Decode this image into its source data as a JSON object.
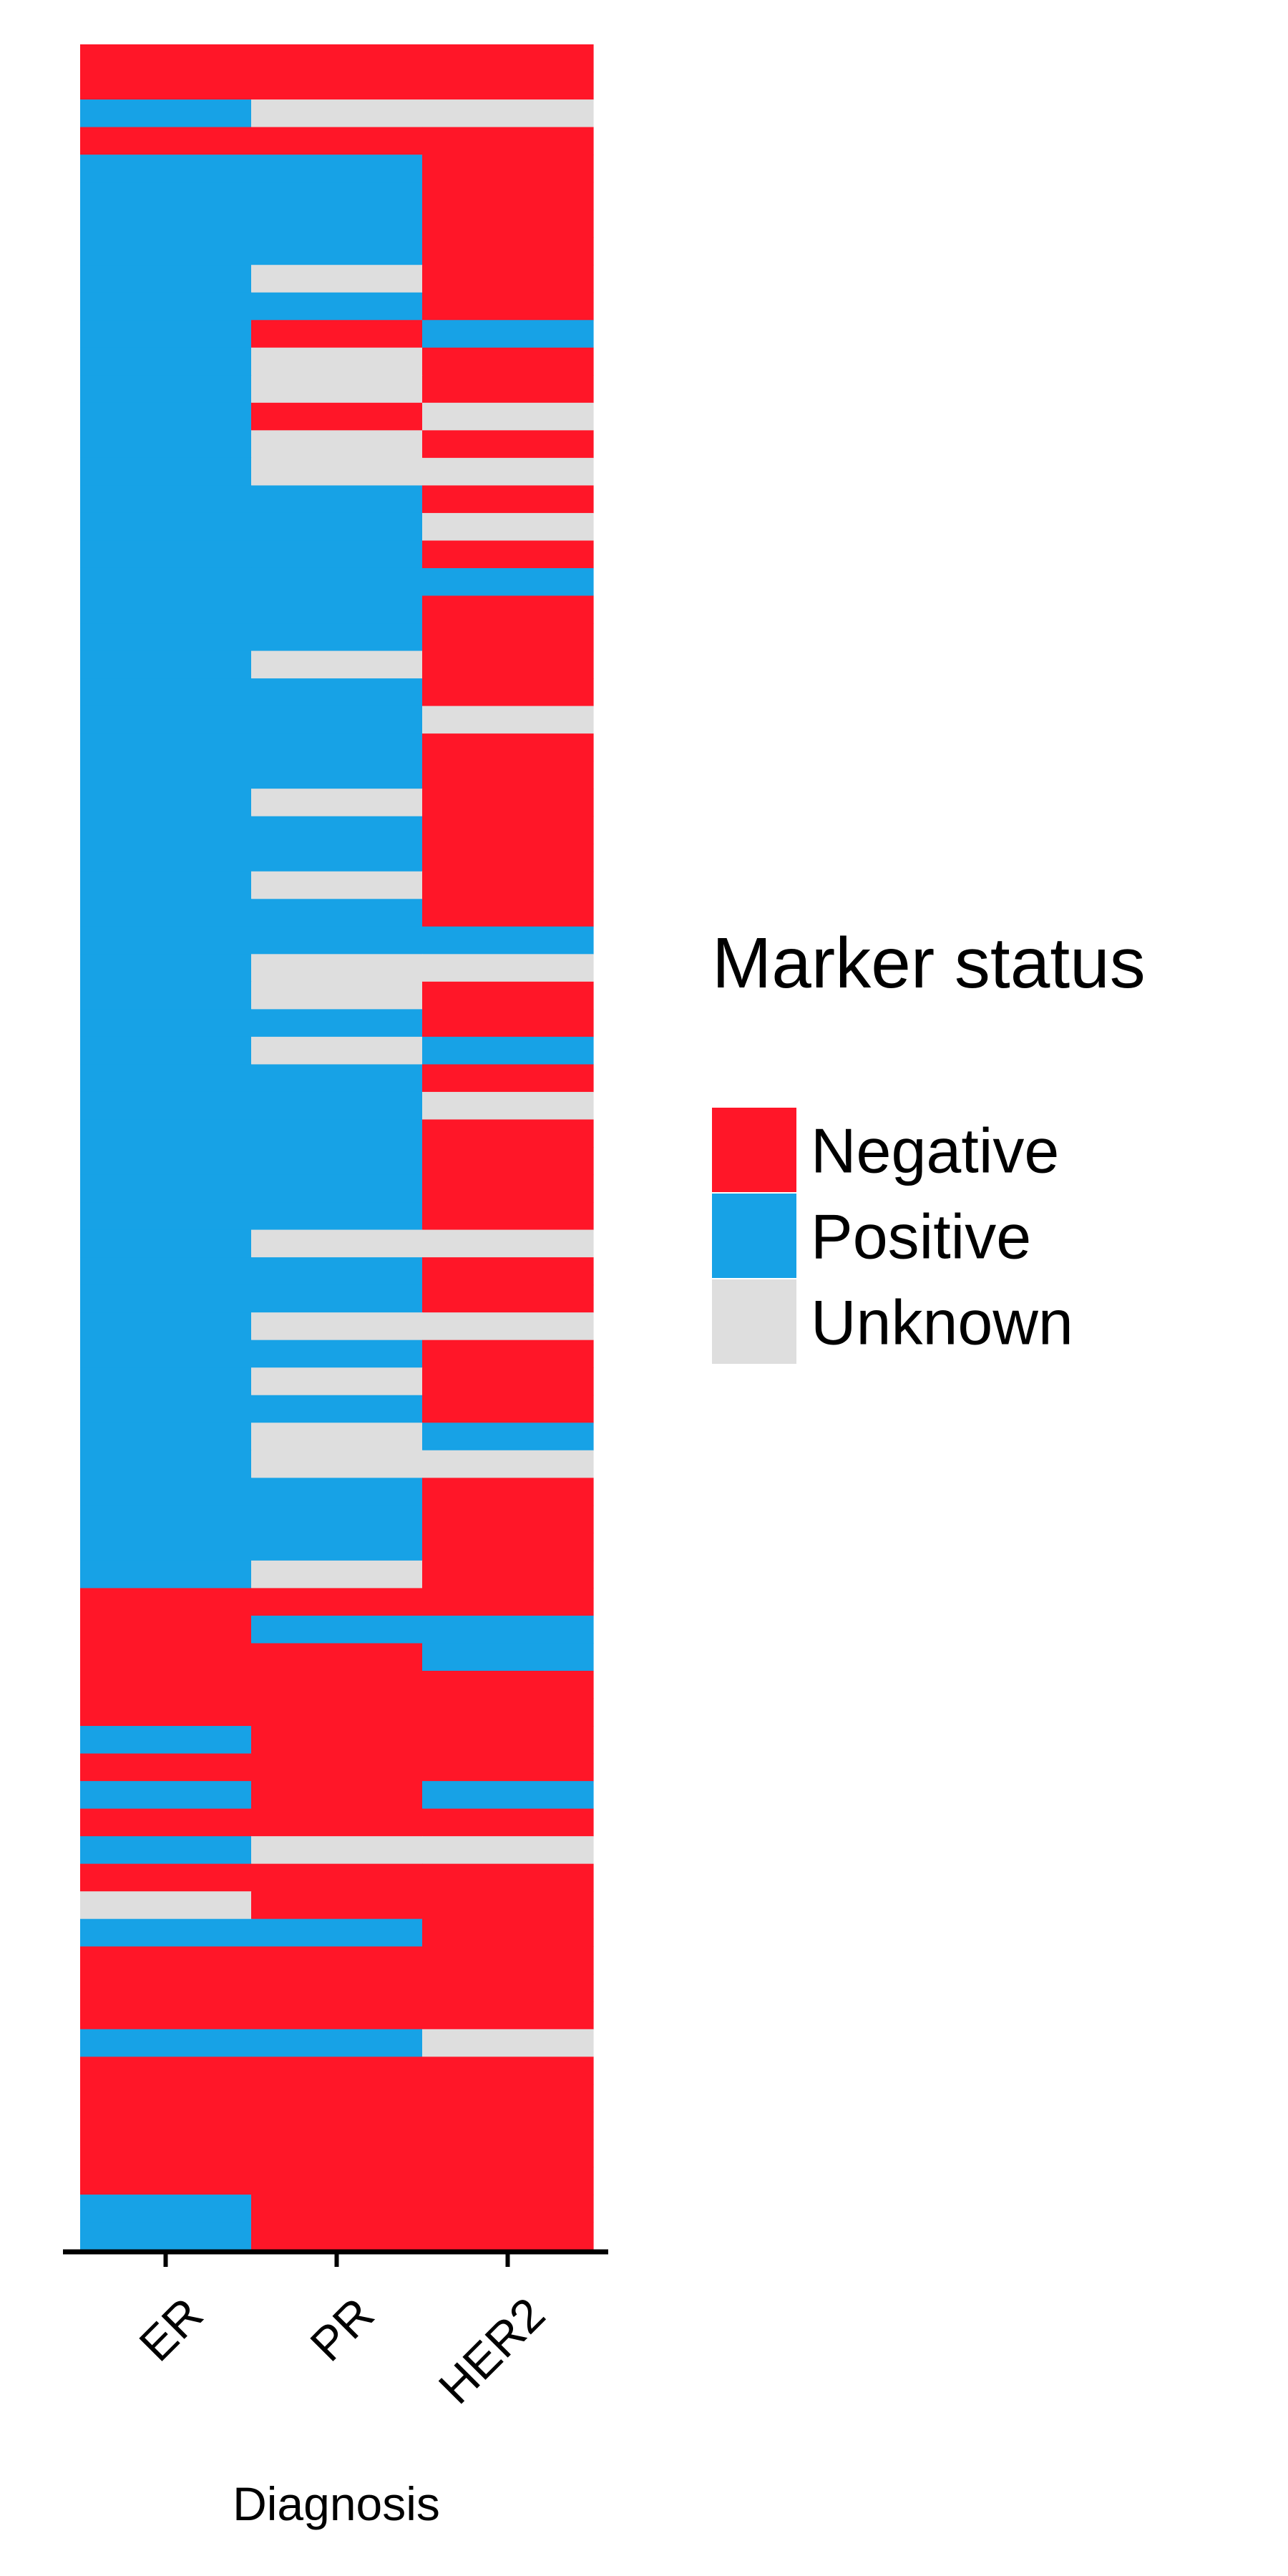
{
  "chart_data": {
    "type": "heatmap",
    "xlabel": "Diagnosis",
    "ylabel": "",
    "columns": [
      "ER",
      "PR",
      "HER2"
    ],
    "status_levels": [
      "Negative",
      "Positive",
      "Unknown"
    ],
    "colors": {
      "Negative": "#FF1628",
      "Positive": "#17A2E6",
      "Unknown": "#DEDEDE"
    },
    "legend": {
      "title": "Marker status",
      "placement": "right",
      "items": [
        "Negative",
        "Positive",
        "Unknown"
      ]
    },
    "grid": false,
    "codes": {
      "N": "Negative",
      "P": "Positive",
      "U": "Unknown"
    },
    "rows": [
      "NNN",
      "NNN",
      "PUU",
      "NNN",
      "PPN",
      "PPN",
      "PPN",
      "PPN",
      "PUN",
      "PPN",
      "PNP",
      "PUN",
      "PUN",
      "PNU",
      "PUN",
      "PUU",
      "PPN",
      "PPU",
      "PPN",
      "PPP",
      "PPN",
      "PPN",
      "PUN",
      "PPN",
      "PPU",
      "PPN",
      "PPN",
      "PUN",
      "PPN",
      "PPN",
      "PUN",
      "PPN",
      "PPP",
      "PUU",
      "PUN",
      "PPN",
      "PUP",
      "PPN",
      "PPU",
      "PPN",
      "PPN",
      "PPN",
      "PPN",
      "PUU",
      "PPN",
      "PPN",
      "PUU",
      "PPN",
      "PUN",
      "PPN",
      "PUP",
      "PUU",
      "PPN",
      "PPN",
      "PPN",
      "PUN",
      "NNN",
      "NPP",
      "NNP",
      "NNN",
      "NNN",
      "PNN",
      "NNN",
      "PNP",
      "NNN",
      "PUU",
      "NNN",
      "UNN",
      "PPN",
      "NNN",
      "NNN",
      "NNN",
      "PPU",
      "NNN",
      "NNN",
      "NNN",
      "NNN",
      "NNN",
      "PNN",
      "PNN"
    ]
  }
}
